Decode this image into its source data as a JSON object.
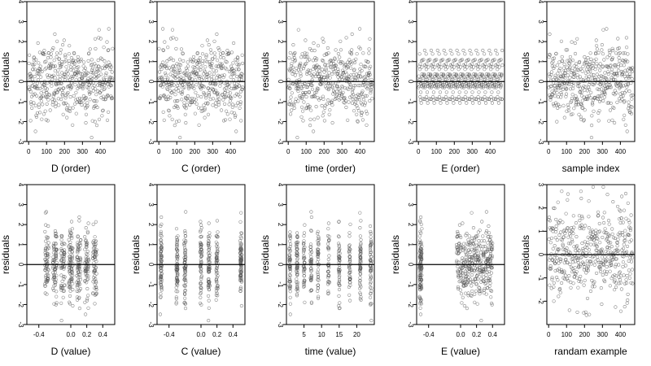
{
  "chart_data": [
    {
      "type": "scatter",
      "xlabel": "D (order)",
      "ylabel": "residuals",
      "xlim": [
        -10,
        480
      ],
      "ylim": [
        -3,
        4
      ],
      "xticks": [
        0,
        100,
        200,
        300,
        400
      ],
      "xtick_labels": [
        "0",
        "100",
        "200",
        "300",
        "400"
      ],
      "yticks": [
        -3,
        -2,
        -1,
        0,
        1,
        2,
        3,
        4
      ],
      "ytick_labels": [
        "-3",
        "-2",
        "-1",
        "0",
        "1",
        "2",
        "3",
        "4"
      ],
      "hline": 0,
      "n_points": 468,
      "x_values": "order index 1-468",
      "y_values": "noisy residuals, approx. -2.8 to 3.7",
      "series": []
    },
    {
      "type": "scatter",
      "xlabel": "C (order)",
      "ylabel": "residuals",
      "xlim": [
        -10,
        480
      ],
      "ylim": [
        -3,
        4
      ],
      "xticks": [
        0,
        100,
        200,
        300,
        400
      ],
      "xtick_labels": [
        "0",
        "100",
        "200",
        "300",
        "400"
      ],
      "yticks": [
        -3,
        -2,
        -1,
        0,
        1,
        2,
        3,
        4
      ],
      "ytick_labels": [
        "-3",
        "-2",
        "-1",
        "0",
        "1",
        "2",
        "3",
        "4"
      ],
      "hline": 0,
      "n_points": 468,
      "x_values": "order index 1-468",
      "y_values": "noisy residuals, approx. -2.8 to 3.7",
      "series": []
    },
    {
      "type": "scatter",
      "xlabel": "time (order)",
      "ylabel": "residuals",
      "xlim": [
        -10,
        480
      ],
      "ylim": [
        -3,
        4
      ],
      "xticks": [
        0,
        100,
        200,
        300,
        400
      ],
      "xtick_labels": [
        "0",
        "100",
        "200",
        "300",
        "400"
      ],
      "yticks": [
        -3,
        -2,
        -1,
        0,
        1,
        2,
        3,
        4
      ],
      "ytick_labels": [
        "-3",
        "-2",
        "-1",
        "0",
        "1",
        "2",
        "3",
        "4"
      ],
      "hline": 0,
      "n_points": 468,
      "x_values": "order index 1-468",
      "y_values": "noisy residuals, approx. -2.8 to 3.7",
      "series": []
    },
    {
      "type": "scatter",
      "xlabel": "E (order)",
      "ylabel": "residuals",
      "xlim": [
        -10,
        480
      ],
      "ylim": [
        -3,
        4
      ],
      "xticks": [
        0,
        100,
        200,
        300,
        400
      ],
      "xtick_labels": [
        "0",
        "100",
        "200",
        "300",
        "400"
      ],
      "yticks": [
        -3,
        -2,
        -1,
        0,
        1,
        2,
        3,
        4
      ],
      "ytick_labels": [
        "-3",
        "-2",
        "-1",
        "0",
        "1",
        "2",
        "3",
        "4"
      ],
      "hline": 0,
      "n_points": 468,
      "x_values": "order index 1-468",
      "y_values": "noisy residuals, approx. -2.8 to 3.7",
      "series": []
    },
    {
      "type": "scatter",
      "xlabel": "sample index",
      "ylabel": "residuals",
      "xlim": [
        -10,
        480
      ],
      "ylim": [
        -3,
        4
      ],
      "xticks": [
        0,
        100,
        200,
        300,
        400
      ],
      "xtick_labels": [
        "0",
        "100",
        "200",
        "300",
        "400"
      ],
      "yticks": [
        -3,
        -2,
        -1,
        0,
        1,
        2,
        3,
        4
      ],
      "ytick_labels": [
        "-3",
        "-2",
        "-1",
        "0",
        "1",
        "2",
        "3",
        "4"
      ],
      "hline": 0,
      "n_points": 468,
      "x_values": "order index 1-468",
      "y_values": "noisy residuals, approx. -2.8 to 3.7",
      "series": []
    },
    {
      "type": "scatter",
      "xlabel": "D (value)",
      "ylabel": "residuals",
      "xlim": [
        -0.55,
        0.55
      ],
      "ylim": [
        -3,
        4
      ],
      "xticks": [
        -0.4,
        0,
        0.2,
        0.4
      ],
      "xtick_labels": [
        "-0.4",
        "0.0",
        "0.2",
        "0.4"
      ],
      "yticks": [
        -3,
        -2,
        -1,
        0,
        1,
        2,
        3,
        4
      ],
      "ytick_labels": [
        "-3",
        "-2",
        "-1",
        "0",
        "1",
        "2",
        "3",
        "4"
      ],
      "hline": 0,
      "n_points": 468,
      "x_values": "clustered near -0.3, -0.2, -0.1, 0.0, 0.1, 0.2, 0.3",
      "y_values": "noisy residuals, approx. -2.8 to 3.7",
      "series": []
    },
    {
      "type": "scatter",
      "xlabel": "C (value)",
      "ylabel": "residuals",
      "xlim": [
        -0.55,
        0.55
      ],
      "ylim": [
        -3,
        4
      ],
      "xticks": [
        -0.4,
        0,
        0.2,
        0.4
      ],
      "xtick_labels": [
        "-0.4",
        "0.0",
        "0.2",
        "0.4"
      ],
      "yticks": [
        -3,
        -2,
        -1,
        0,
        1,
        2,
        3,
        4
      ],
      "ytick_labels": [
        "-3",
        "-2",
        "-1",
        "0",
        "1",
        "2",
        "3",
        "4"
      ],
      "hline": 0,
      "n_points": 468,
      "x_values": "clustered near -0.5, -0.3, -0.2, 0.0, 0.1, 0.2, 0.5",
      "y_values": "noisy residuals, approx. -2.8 to 3.7",
      "series": []
    },
    {
      "type": "scatter",
      "xlabel": "time (value)",
      "ylabel": "residuals",
      "xlim": [
        0,
        25
      ],
      "ylim": [
        -3,
        4
      ],
      "xticks": [
        5,
        10,
        15,
        20
      ],
      "xtick_labels": [
        "5",
        "10",
        "15",
        "20"
      ],
      "yticks": [
        -3,
        -2,
        -1,
        0,
        1,
        2,
        3,
        4
      ],
      "ytick_labels": [
        "-3",
        "-2",
        "-1",
        "0",
        "1",
        "2",
        "3",
        "4"
      ],
      "hline": 0,
      "n_points": 468,
      "x_values": "clustered near 1, 3, 5, 7, 9, 12, 15, 18, 21, 24",
      "y_values": "noisy residuals, approx. -2.8 to 3.7",
      "series": []
    },
    {
      "type": "scatter",
      "xlabel": "E (value)",
      "ylabel": "residuals",
      "xlim": [
        -0.55,
        0.55
      ],
      "ylim": [
        -3,
        4
      ],
      "xticks": [
        -0.4,
        0,
        0.2,
        0.4
      ],
      "xtick_labels": [
        "-0.4",
        "0.0",
        "0.2",
        "0.4"
      ],
      "yticks": [
        -3,
        -2,
        -1,
        0,
        1,
        2,
        3,
        4
      ],
      "ytick_labels": [
        "-3",
        "-2",
        "-1",
        "0",
        "1",
        "2",
        "3",
        "4"
      ],
      "hline": 0,
      "n_points": 468,
      "x_values": "dense near -0.5 and 0.0-0.4",
      "y_values": "noisy residuals, approx. -2.8 to 3.7",
      "series": []
    },
    {
      "type": "scatter",
      "xlabel": "randam example",
      "ylabel": "residuals",
      "xlim": [
        -10,
        480
      ],
      "ylim": [
        -3,
        3
      ],
      "xticks": [
        0,
        100,
        200,
        300,
        400
      ],
      "xtick_labels": [
        "0",
        "100",
        "200",
        "300",
        "400"
      ],
      "yticks": [
        -2,
        -1,
        0,
        1,
        2,
        3
      ],
      "ytick_labels": [
        "-2",
        "-1",
        "0",
        "1",
        "2",
        "3"
      ],
      "hline": 0,
      "n_points": 468,
      "x_values": "order index 1-468",
      "y_values": "random normal sample, approx. -2.6 to 2.9",
      "series": []
    }
  ]
}
